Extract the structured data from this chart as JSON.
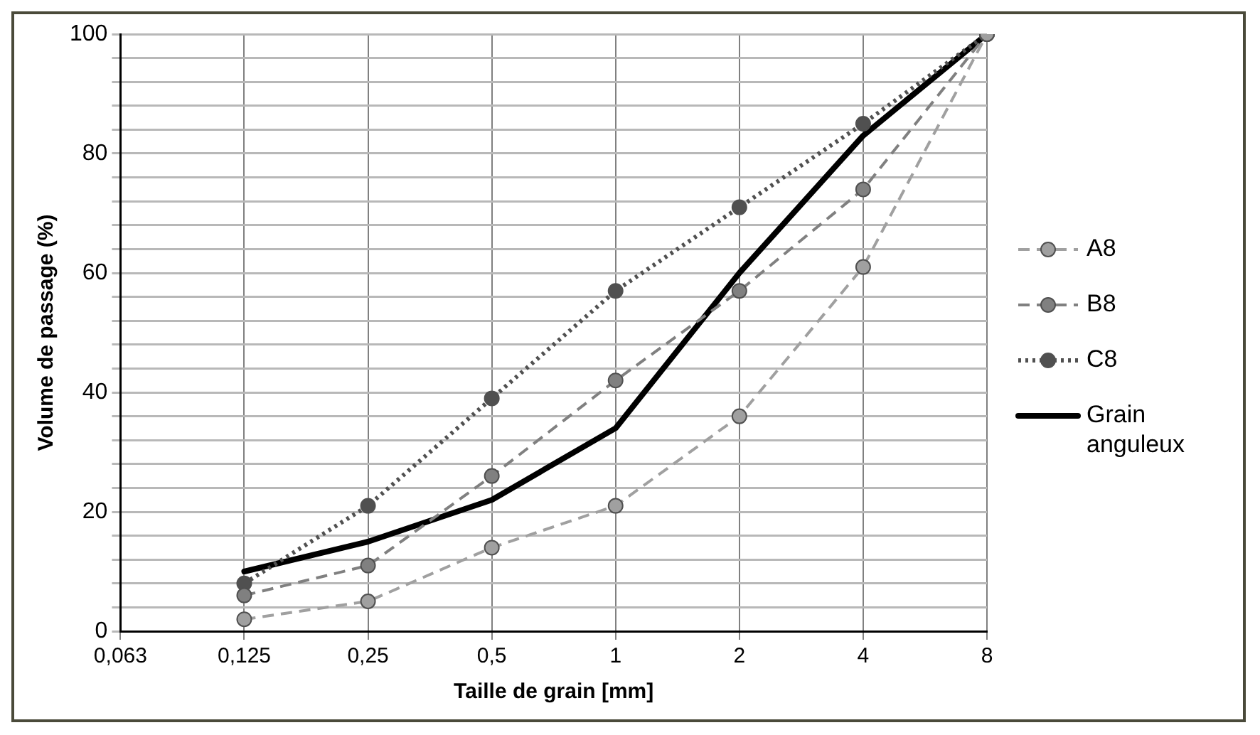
{
  "chart_data": {
    "type": "line",
    "xlabel": "Taille de grain [mm]",
    "ylabel": "Volume de passage (%)",
    "categories": [
      "0,063",
      "0,125",
      "0,25",
      "0,5",
      "1",
      "2",
      "4",
      "8"
    ],
    "ylim": [
      0,
      100
    ],
    "yticks": [
      0,
      {
        "value": 4,
        "label": null
      },
      {
        "value": 8,
        "label": null
      },
      {
        "value": 12,
        "label": null
      },
      {
        "value": 16,
        "label": null
      },
      20,
      {
        "value": 24,
        "label": null
      },
      {
        "value": 28,
        "label": null
      },
      {
        "value": 32,
        "label": null
      },
      {
        "value": 36,
        "label": null
      },
      40,
      {
        "value": 44,
        "label": null
      },
      {
        "value": 48,
        "label": null
      },
      {
        "value": 52,
        "label": null
      },
      {
        "value": 56,
        "label": null
      },
      60,
      {
        "value": 64,
        "label": null
      },
      {
        "value": 68,
        "label": null
      },
      {
        "value": 72,
        "label": null
      },
      {
        "value": 76,
        "label": null
      },
      80,
      {
        "value": 84,
        "label": null
      },
      {
        "value": 88,
        "label": null
      },
      {
        "value": 92,
        "label": null
      },
      {
        "value": 96,
        "label": null
      },
      100
    ],
    "grid": true,
    "legend": "right",
    "series": [
      {
        "name": "A8",
        "color": "#a0a0a0",
        "values": [
          null,
          2,
          5,
          14,
          21,
          36,
          61,
          100
        ],
        "marker": "circle",
        "line_style": "dashed"
      },
      {
        "name": "B8",
        "color": "#808080",
        "values": [
          null,
          6,
          11,
          26,
          42,
          57,
          74,
          100
        ],
        "marker": "circle",
        "line_style": "dashed"
      },
      {
        "name": "C8",
        "color": "#505050",
        "values": [
          null,
          8,
          21,
          39,
          57,
          71,
          85,
          100
        ],
        "marker": "circle",
        "line_style": "dotted"
      },
      {
        "name": "Grain anguleux",
        "color": "#000000",
        "values": [
          null,
          10,
          15,
          22,
          34,
          60,
          83,
          100
        ],
        "marker": "none",
        "line_style": "solid"
      }
    ]
  }
}
